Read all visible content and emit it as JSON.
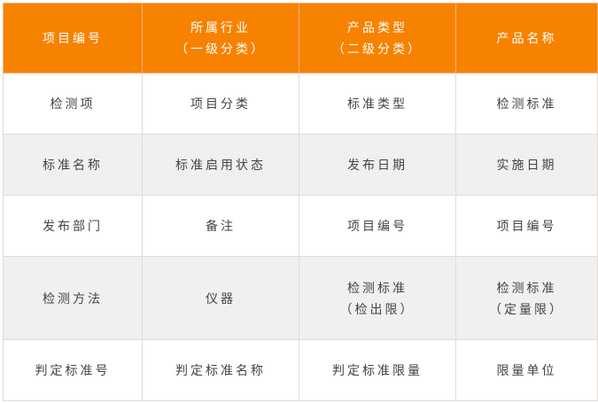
{
  "header": [
    [
      "项目编号"
    ],
    [
      "所属行业",
      "（一级分类）"
    ],
    [
      "产品类型",
      "（二级分类）"
    ],
    [
      "产品名称"
    ]
  ],
  "rows": [
    [
      [
        "检测项"
      ],
      [
        "项目分类"
      ],
      [
        "标准类型"
      ],
      [
        "检测标准"
      ]
    ],
    [
      [
        "标准名称"
      ],
      [
        "标准启用状态"
      ],
      [
        "发布日期"
      ],
      [
        "实施日期"
      ]
    ],
    [
      [
        "发布部门"
      ],
      [
        "备注"
      ],
      [
        "项目编号"
      ],
      [
        "项目编号"
      ]
    ],
    [
      [
        "检测方法"
      ],
      [
        "仪器"
      ],
      [
        "检测标准",
        "（检出限）"
      ],
      [
        "检测标准",
        "（定量限）"
      ]
    ],
    [
      [
        "判定标准号"
      ],
      [
        "判定标准名称"
      ],
      [
        "判定标准限量"
      ],
      [
        "限量单位"
      ]
    ]
  ],
  "colors": {
    "header_bg": "#f78200",
    "alt_row_bg": "#f0f0f0",
    "border": "#e6d9d4"
  }
}
